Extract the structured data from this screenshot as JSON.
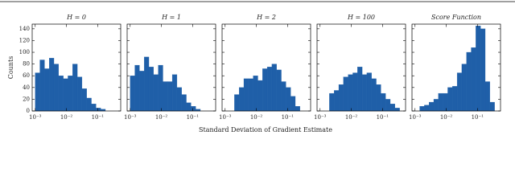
{
  "x_label": "Standard Deviation of Gradient Estimate",
  "chart_data": [
    {
      "type": "histogram",
      "title": "H = 0",
      "ylabel": "Counts",
      "color": "#1f5fa8",
      "log_x": true,
      "show_ytick_labels": true,
      "xlim": [
        0.0008,
        0.55
      ],
      "ylim": [
        0,
        148
      ],
      "xticks": [
        {
          "value": 0.001,
          "label": "10⁻³"
        },
        {
          "value": 0.01,
          "label": "10⁻²"
        },
        {
          "value": 0.1,
          "label": "10⁻¹"
        }
      ],
      "yticks": [
        0,
        20,
        40,
        60,
        80,
        100,
        120,
        140
      ],
      "bins": [
        0.001,
        0.001413,
        0.001995,
        0.002818,
        0.003981,
        0.005623,
        0.007943,
        0.01122,
        0.01585,
        0.02239,
        0.03162,
        0.04467,
        0.0631,
        0.08913,
        0.1259,
        0.1778,
        0.2512,
        0.3548,
        0.5012
      ],
      "counts": [
        65,
        87,
        72,
        90,
        80,
        60,
        55,
        60,
        80,
        58,
        38,
        22,
        12,
        5,
        3,
        0,
        0,
        0
      ]
    },
    {
      "type": "histogram",
      "title": "H = 1",
      "color": "#1f5fa8",
      "log_x": true,
      "show_ytick_labels": false,
      "xlim": [
        0.0008,
        0.55
      ],
      "ylim": [
        0,
        148
      ],
      "xticks": [
        {
          "value": 0.001,
          "label": "10⁻³"
        },
        {
          "value": 0.01,
          "label": "10⁻²"
        },
        {
          "value": 0.1,
          "label": "10⁻¹"
        }
      ],
      "yticks": [
        0,
        20,
        40,
        60,
        80,
        100,
        120,
        140
      ],
      "bins": [
        0.001,
        0.001413,
        0.001995,
        0.002818,
        0.003981,
        0.005623,
        0.007943,
        0.01122,
        0.01585,
        0.02239,
        0.03162,
        0.04467,
        0.0631,
        0.08913,
        0.1259,
        0.1778,
        0.2512,
        0.3548,
        0.5012
      ],
      "counts": [
        60,
        78,
        68,
        92,
        75,
        62,
        78,
        50,
        50,
        62,
        40,
        28,
        14,
        8,
        3,
        0,
        0,
        0
      ]
    },
    {
      "type": "histogram",
      "title": "H = 2",
      "color": "#1f5fa8",
      "log_x": true,
      "show_ytick_labels": false,
      "xlim": [
        0.0008,
        0.55
      ],
      "ylim": [
        0,
        148
      ],
      "xticks": [
        {
          "value": 0.001,
          "label": "10⁻³"
        },
        {
          "value": 0.01,
          "label": "10⁻²"
        },
        {
          "value": 0.1,
          "label": "10⁻¹"
        }
      ],
      "yticks": [
        0,
        20,
        40,
        60,
        80,
        100,
        120,
        140
      ],
      "bins": [
        0.001,
        0.001413,
        0.001995,
        0.002818,
        0.003981,
        0.005623,
        0.007943,
        0.01122,
        0.01585,
        0.02239,
        0.03162,
        0.04467,
        0.0631,
        0.08913,
        0.1259,
        0.1778,
        0.2512,
        0.3548,
        0.5012
      ],
      "counts": [
        0,
        0,
        28,
        40,
        55,
        55,
        60,
        52,
        72,
        75,
        80,
        70,
        50,
        40,
        25,
        8,
        0,
        0
      ]
    },
    {
      "type": "histogram",
      "title": "H = 100",
      "color": "#1f5fa8",
      "log_x": true,
      "show_ytick_labels": false,
      "xlim": [
        0.0008,
        0.55
      ],
      "ylim": [
        0,
        148
      ],
      "xticks": [
        {
          "value": 0.001,
          "label": "10⁻³"
        },
        {
          "value": 0.01,
          "label": "10⁻²"
        },
        {
          "value": 0.1,
          "label": "10⁻¹"
        }
      ],
      "yticks": [
        0,
        20,
        40,
        60,
        80,
        100,
        120,
        140
      ],
      "bins": [
        0.001,
        0.001413,
        0.001995,
        0.002818,
        0.003981,
        0.005623,
        0.007943,
        0.01122,
        0.01585,
        0.02239,
        0.03162,
        0.04467,
        0.0631,
        0.08913,
        0.1259,
        0.1778,
        0.2512,
        0.3548,
        0.5012
      ],
      "counts": [
        0,
        0,
        30,
        35,
        45,
        58,
        62,
        65,
        75,
        62,
        65,
        55,
        45,
        30,
        20,
        12,
        5,
        0
      ]
    },
    {
      "type": "histogram",
      "title": "Score Function",
      "color": "#1f5fa8",
      "log_x": true,
      "show_ytick_labels": false,
      "xlim": [
        0.0008,
        0.55
      ],
      "ylim": [
        0,
        148
      ],
      "xticks": [
        {
          "value": 0.001,
          "label": "10⁻³"
        },
        {
          "value": 0.01,
          "label": "10⁻²"
        },
        {
          "value": 0.1,
          "label": "10⁻¹"
        }
      ],
      "yticks": [
        0,
        20,
        40,
        60,
        80,
        100,
        120,
        140
      ],
      "bins": [
        0.001,
        0.001413,
        0.001995,
        0.002818,
        0.003981,
        0.005623,
        0.007943,
        0.01122,
        0.01585,
        0.02239,
        0.03162,
        0.04467,
        0.0631,
        0.08913,
        0.1259,
        0.1778,
        0.2512,
        0.3548,
        0.5012
      ],
      "counts": [
        0,
        8,
        10,
        15,
        20,
        30,
        30,
        40,
        42,
        65,
        80,
        100,
        108,
        145,
        140,
        50,
        15,
        0
      ]
    }
  ]
}
